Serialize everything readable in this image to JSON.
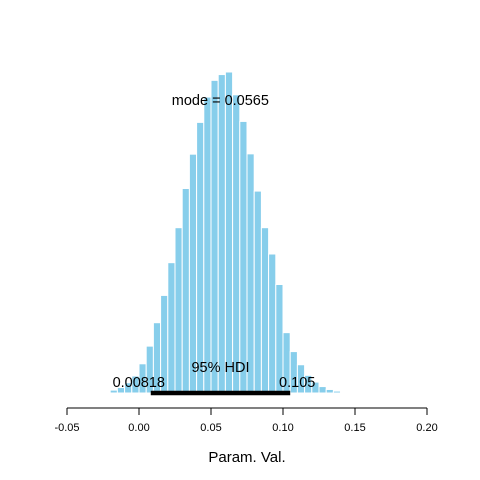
{
  "chart_data": {
    "type": "bar",
    "title": "",
    "xlabel": "Param. Val.",
    "ylabel": "",
    "xlim": [
      -0.05,
      0.2
    ],
    "x_ticks": [
      -0.05,
      0.0,
      0.05,
      0.1,
      0.15,
      0.2
    ],
    "x_tick_labels": [
      "-0.05",
      "0.00",
      "0.05",
      "0.10",
      "0.15",
      "0.20"
    ],
    "bin_width": 0.005,
    "bins": [
      {
        "x": -0.0175,
        "value": 0.009
      },
      {
        "x": -0.0125,
        "value": 0.017
      },
      {
        "x": -0.0075,
        "value": 0.032
      },
      {
        "x": -0.0025,
        "value": 0.053
      },
      {
        "x": 0.0025,
        "value": 0.091
      },
      {
        "x": 0.0075,
        "value": 0.146
      },
      {
        "x": 0.0125,
        "value": 0.219
      },
      {
        "x": 0.0175,
        "value": 0.304
      },
      {
        "x": 0.0225,
        "value": 0.406
      },
      {
        "x": 0.0275,
        "value": 0.515
      },
      {
        "x": 0.0325,
        "value": 0.637
      },
      {
        "x": 0.0375,
        "value": 0.744
      },
      {
        "x": 0.0425,
        "value": 0.843
      },
      {
        "x": 0.0475,
        "value": 0.922
      },
      {
        "x": 0.0525,
        "value": 0.974
      },
      {
        "x": 0.0575,
        "value": 0.992
      },
      {
        "x": 0.0625,
        "value": 1.0
      },
      {
        "x": 0.0675,
        "value": 0.929
      },
      {
        "x": 0.0725,
        "value": 0.846
      },
      {
        "x": 0.0775,
        "value": 0.745
      },
      {
        "x": 0.0825,
        "value": 0.629
      },
      {
        "x": 0.0875,
        "value": 0.515
      },
      {
        "x": 0.0925,
        "value": 0.433
      },
      {
        "x": 0.0975,
        "value": 0.338
      },
      {
        "x": 0.1025,
        "value": 0.188
      },
      {
        "x": 0.1075,
        "value": 0.129
      },
      {
        "x": 0.1125,
        "value": 0.088
      },
      {
        "x": 0.1175,
        "value": 0.055
      },
      {
        "x": 0.1225,
        "value": 0.034
      },
      {
        "x": 0.1275,
        "value": 0.02
      },
      {
        "x": 0.1325,
        "value": 0.011
      },
      {
        "x": 0.1375,
        "value": 0.006
      },
      {
        "x": 0.1425,
        "value": 0.003
      }
    ],
    "bar_color": "#87ceeb",
    "grid": false,
    "annotations": {
      "mode_label": "mode = 0.0565",
      "mode_value": 0.0565,
      "hdi_label": "95% HDI",
      "hdi_low": 0.00818,
      "hdi_high": 0.105,
      "hdi_low_label": "0.00818",
      "hdi_high_label": "0.105"
    }
  }
}
